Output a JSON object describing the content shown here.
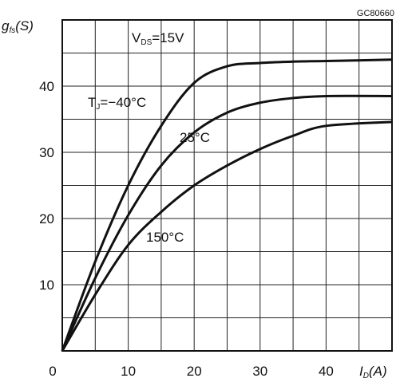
{
  "chart_data": {
    "type": "line",
    "code_label": "GC80660",
    "xlabel": "ID(A)",
    "ylabel": "gfs(S)",
    "xlim": [
      0,
      50
    ],
    "ylim": [
      0,
      50
    ],
    "x_ticks": [
      0,
      10,
      20,
      30,
      40
    ],
    "y_ticks": [
      10,
      20,
      30,
      40
    ],
    "x_grid_step": 5,
    "y_grid_step": 5,
    "grid": true,
    "annotations": {
      "condition": "VDS=15V"
    },
    "series": [
      {
        "name": "TJ=-40°C",
        "x": [
          0,
          5,
          10,
          15,
          20,
          25,
          30,
          35,
          40,
          50
        ],
        "y": [
          0,
          13.5,
          25,
          34,
          40.5,
          43,
          43.5,
          43.7,
          43.8,
          44
        ]
      },
      {
        "name": "25°C",
        "x": [
          0,
          5,
          10,
          15,
          20,
          25,
          30,
          35,
          40,
          50
        ],
        "y": [
          0,
          11,
          20.5,
          28,
          33,
          36,
          37.5,
          38.2,
          38.5,
          38.5
        ]
      },
      {
        "name": "150°C",
        "x": [
          0,
          5,
          10,
          15,
          20,
          25,
          30,
          35,
          40,
          50
        ],
        "y": [
          0,
          8.5,
          16,
          21,
          25,
          28,
          30.5,
          32.5,
          34,
          34.6
        ]
      }
    ]
  }
}
